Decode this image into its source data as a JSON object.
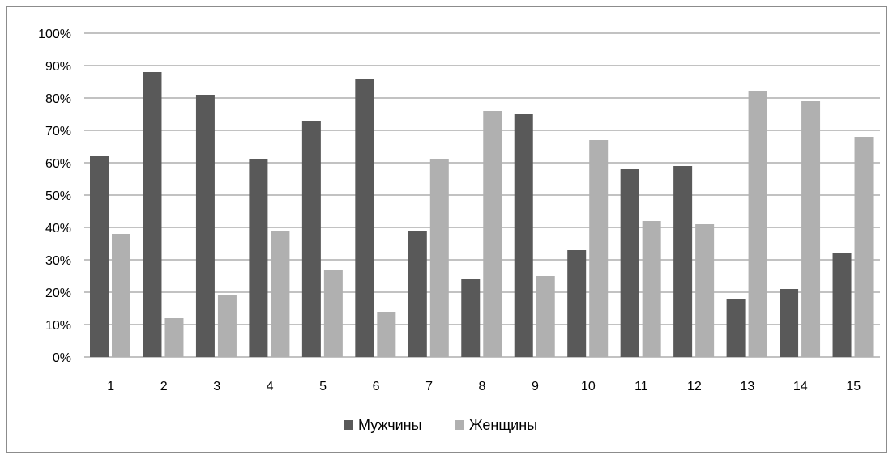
{
  "chart_data": {
    "type": "bar",
    "categories": [
      "1",
      "2",
      "3",
      "4",
      "5",
      "6",
      "7",
      "8",
      "9",
      "10",
      "11",
      "12",
      "13",
      "14",
      "15"
    ],
    "series": [
      {
        "name": "Мужчины",
        "color": "#595959",
        "values": [
          62,
          88,
          81,
          61,
          73,
          86,
          39,
          24,
          75,
          33,
          58,
          59,
          18,
          21,
          32
        ]
      },
      {
        "name": "Женщины",
        "color": "#b0b0b0",
        "values": [
          38,
          12,
          19,
          39,
          27,
          14,
          61,
          76,
          25,
          67,
          42,
          41,
          82,
          79,
          68
        ]
      }
    ],
    "y_ticks": [
      "0%",
      "10%",
      "20%",
      "30%",
      "40%",
      "50%",
      "60%",
      "70%",
      "80%",
      "90%",
      "100%"
    ],
    "ylim": [
      0,
      100
    ],
    "grid": true,
    "legend_position": "bottom"
  }
}
